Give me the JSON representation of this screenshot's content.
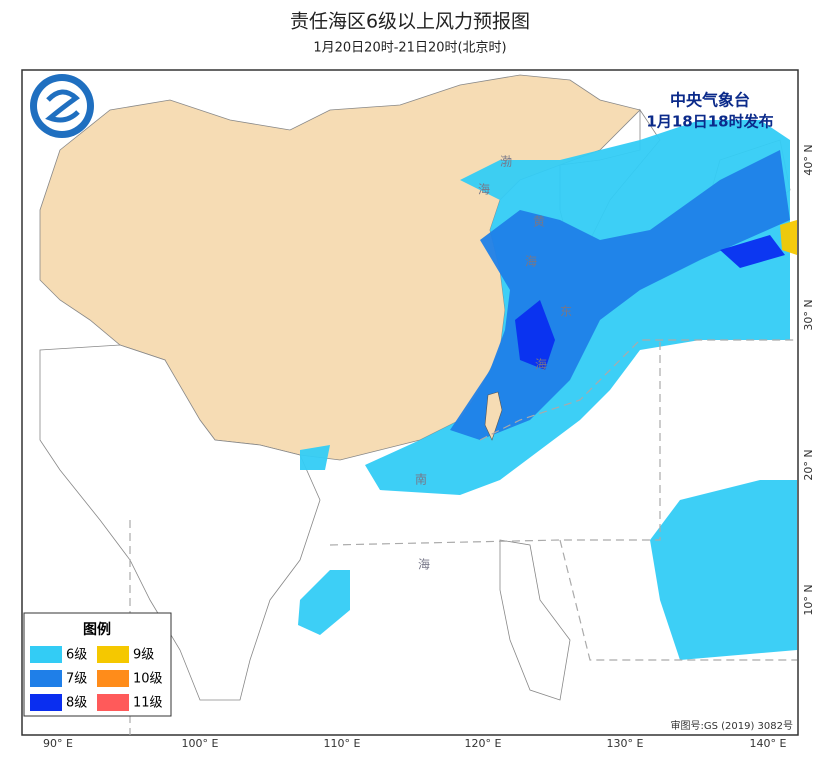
{
  "header": {
    "title": "责任海区6级以上风力预报图",
    "subtitle": "1月20日20时-21日20时(北京时)"
  },
  "issuer": {
    "name": "中央气象台",
    "time": "1月18日18时发布"
  },
  "legend": {
    "title": "图例",
    "items": [
      {
        "label": "6级",
        "color": "#33ccf5"
      },
      {
        "label": "7级",
        "color": "#1f7fe8"
      },
      {
        "label": "8级",
        "color": "#0a2ef0"
      },
      {
        "label": "9级",
        "color": "#f5c800"
      },
      {
        "label": "10级",
        "color": "#ff8c1a"
      },
      {
        "label": "11级",
        "color": "#ff5a5a"
      }
    ]
  },
  "longitude_labels": [
    "90° E",
    "100° E",
    "110° E",
    "120° E",
    "130° E",
    "140° E"
  ],
  "latitude_labels": [
    "40° N",
    "30° N",
    "20° N",
    "10° N"
  ],
  "sea_labels": [
    "渤",
    "海",
    "黄",
    "海",
    "东",
    "海",
    "南",
    "海"
  ],
  "map_number": "审图号:GS (2019) 3082号"
}
